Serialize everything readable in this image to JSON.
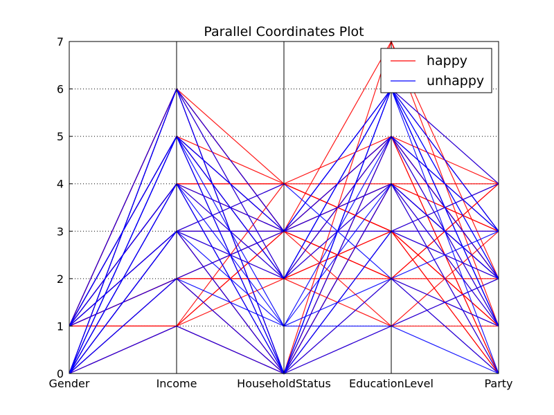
{
  "chart_data": {
    "type": "parallel_coordinates",
    "title": "Parallel Coordinates Plot",
    "axes": [
      "Gender",
      "Income",
      "HouseholdStatus",
      "EducationLevel",
      "Party"
    ],
    "ylim": [
      0,
      7
    ],
    "yticks": [
      "0",
      "1",
      "2",
      "3",
      "4",
      "5",
      "6",
      "7"
    ],
    "grid": "horizontal-dotted",
    "legend_position": "top-right",
    "series": [
      {
        "name": "happy",
        "color": "#ff0000",
        "lines": [
          [
            1,
            6,
            3,
            7,
            2
          ],
          [
            1,
            6,
            3,
            5,
            3
          ],
          [
            1,
            6,
            0,
            5,
            2
          ],
          [
            1,
            5,
            3,
            5,
            2
          ],
          [
            1,
            5,
            4,
            3,
            1
          ],
          [
            1,
            5,
            2,
            1,
            2
          ],
          [
            1,
            4,
            4,
            3,
            3
          ],
          [
            1,
            4,
            3,
            6,
            1
          ],
          [
            1,
            4,
            0,
            4,
            3
          ],
          [
            1,
            3,
            3,
            2,
            2
          ],
          [
            1,
            3,
            2,
            5,
            2
          ],
          [
            1,
            2,
            3,
            4,
            4
          ],
          [
            1,
            2,
            2,
            3,
            1
          ],
          [
            1,
            2,
            0,
            4,
            0
          ],
          [
            1,
            1,
            4,
            4,
            3
          ],
          [
            1,
            1,
            3,
            2,
            0
          ],
          [
            1,
            1,
            0,
            3,
            1
          ],
          [
            0,
            6,
            0,
            5,
            0
          ],
          [
            0,
            6,
            3,
            4,
            2
          ],
          [
            0,
            5,
            2,
            3,
            0
          ],
          [
            0,
            4,
            3,
            5,
            1
          ],
          [
            0,
            3,
            4,
            3,
            2
          ],
          [
            0,
            3,
            0,
            2,
            4
          ],
          [
            0,
            2,
            2,
            4,
            2
          ],
          [
            0,
            2,
            0,
            7,
            1
          ],
          [
            0,
            1,
            3,
            3,
            4
          ],
          [
            0,
            1,
            0,
            1,
            1
          ],
          [
            1,
            6,
            2,
            6,
            4
          ],
          [
            0,
            5,
            3,
            2,
            1
          ],
          [
            1,
            4,
            2,
            5,
            0
          ],
          [
            0,
            3,
            3,
            4,
            1
          ],
          [
            1,
            2,
            3,
            1,
            3
          ],
          [
            0,
            4,
            4,
            3,
            0
          ],
          [
            1,
            5,
            0,
            6,
            3
          ],
          [
            0,
            6,
            4,
            5,
            4
          ],
          [
            1,
            3,
            0,
            4,
            2
          ],
          [
            1,
            1,
            2,
            2,
            4
          ]
        ]
      },
      {
        "name": "unhappy",
        "color": "#0000ff",
        "lines": [
          [
            0,
            6,
            0,
            6,
            4
          ],
          [
            0,
            5,
            1,
            2,
            0
          ],
          [
            0,
            5,
            3,
            6,
            3
          ],
          [
            0,
            4,
            0,
            1,
            2
          ],
          [
            0,
            4,
            3,
            4,
            1
          ],
          [
            0,
            3,
            1,
            5,
            3
          ],
          [
            0,
            3,
            2,
            6,
            2
          ],
          [
            0,
            2,
            1,
            4,
            0
          ],
          [
            0,
            6,
            3,
            5,
            1
          ],
          [
            1,
            5,
            3,
            6,
            2
          ],
          [
            1,
            4,
            2,
            5,
            3
          ],
          [
            1,
            3,
            0,
            6,
            1
          ],
          [
            1,
            6,
            0,
            3,
            3
          ],
          [
            1,
            5,
            0,
            2,
            1
          ],
          [
            0,
            2,
            3,
            6,
            0
          ],
          [
            0,
            5,
            2,
            4,
            2
          ],
          [
            1,
            4,
            1,
            1,
            0
          ],
          [
            0,
            3,
            3,
            3,
            4
          ],
          [
            0,
            6,
            2,
            6,
            1
          ],
          [
            1,
            2,
            0,
            3,
            2
          ],
          [
            0,
            4,
            0,
            6,
            3
          ],
          [
            0,
            5,
            0,
            5,
            2
          ],
          [
            1,
            3,
            4,
            2,
            3
          ],
          [
            0,
            1,
            0,
            4,
            2
          ],
          [
            1,
            5,
            2,
            6,
            1
          ]
        ]
      }
    ]
  }
}
